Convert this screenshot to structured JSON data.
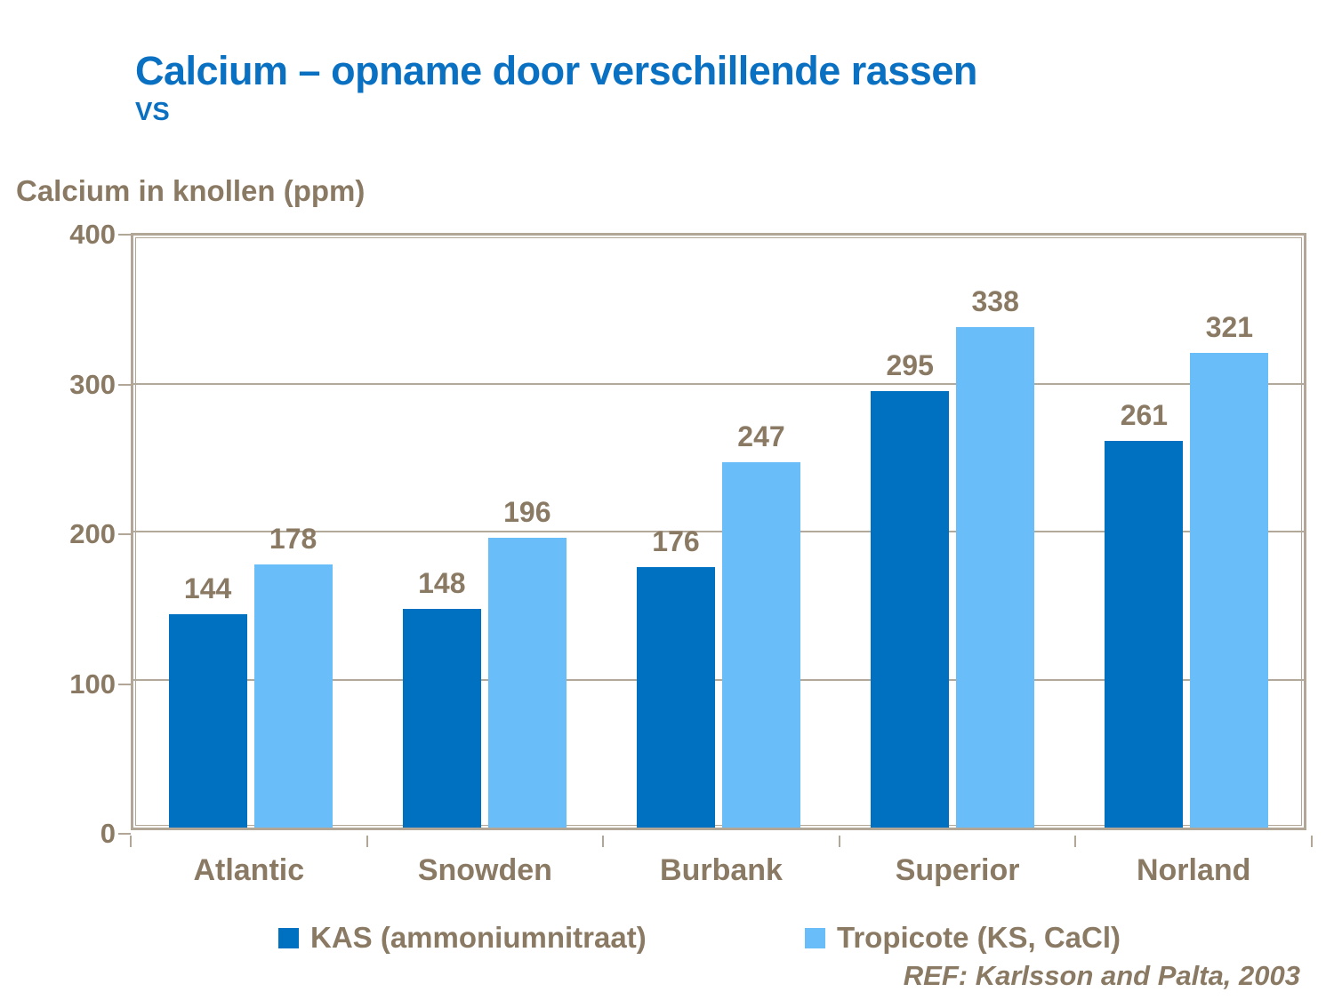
{
  "header": {
    "title": "Calcium – opname door verschillende rassen",
    "subtitle": "VS"
  },
  "chart_data": {
    "type": "bar",
    "title": "Calcium – opname door verschillende rassen",
    "axis_title": "Calcium in knollen (ppm)",
    "categories": [
      "Atlantic",
      "Snowden",
      "Burbank",
      "Superior",
      "Norland"
    ],
    "series": [
      {
        "name": "KAS (ammoniumnitraat)",
        "color": "#0070c0",
        "values": [
          144,
          148,
          176,
          295,
          261
        ]
      },
      {
        "name": "Tropicote (KS, CaCl)",
        "color": "#69befa",
        "values": [
          178,
          196,
          247,
          338,
          321
        ]
      }
    ],
    "ylim": [
      0,
      400
    ],
    "yticks": [
      400,
      300,
      200,
      100,
      0
    ],
    "grid": true,
    "legend_position": "bottom",
    "data_labels": true
  },
  "footer": {
    "reference": "REF: Karlsson and Palta, 2003"
  },
  "colors": {
    "title_blue": "#0a70c2",
    "text_brown": "#8a7963",
    "axis_border": "#b2a697",
    "gridline": "#b3a99b",
    "background": "#ffffff"
  }
}
